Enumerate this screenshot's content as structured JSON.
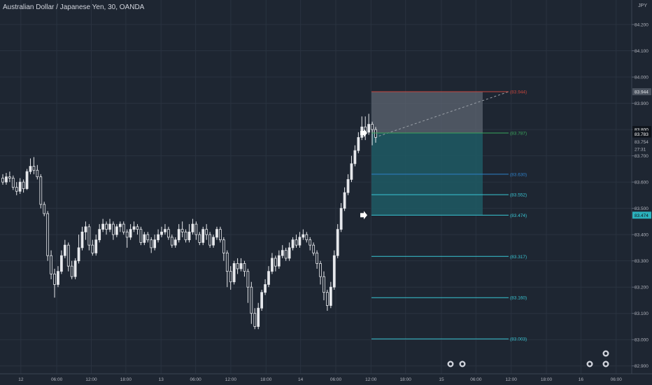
{
  "header": {
    "title": "Australian Dollar / Japanese Yen, 30, OANDA"
  },
  "colors": {
    "background": "#1e2632",
    "grid": "#2a3340",
    "text": "#b2b5be",
    "candle": "#e6e8ec",
    "stop_line": "#c8463d",
    "entry_line": "#3ba55c",
    "fib_line_blue": "#2e80c9",
    "fib_line_cyan": "#39c6d4",
    "current_price_bg": "#e6e8ec",
    "entry_price_bg": "#2bb2bd"
  },
  "chart_data": {
    "type": "candlestick",
    "y_axis_unit": "JPY",
    "ylim": [
      82.87,
      84.28
    ],
    "y_ticks": [
      82.9,
      83.0,
      83.1,
      83.2,
      83.3,
      83.4,
      83.5,
      83.6,
      83.7,
      83.8,
      83.9,
      84.0,
      84.1,
      84.2
    ],
    "y_tick_labels": [
      "82.900",
      "83.000",
      "83.100",
      "83.200",
      "83.300",
      "83.400",
      "83.500",
      "83.600",
      "83.700",
      "83.800",
      "83.900",
      "84.000",
      "84.100",
      "84.200"
    ],
    "x_tick_labels": [
      "12",
      "06:00",
      "12:00",
      "18:00",
      "13",
      "06:00",
      "12:00",
      "18:00",
      "14",
      "06:00",
      "12:00",
      "18:00",
      "15",
      "06:00",
      "12:00",
      "18:00",
      "16",
      "06:00"
    ],
    "x_tick_fractions": [
      0.032,
      0.087,
      0.14,
      0.193,
      0.247,
      0.3,
      0.354,
      0.408,
      0.461,
      0.515,
      0.569,
      0.622,
      0.677,
      0.73,
      0.784,
      0.838,
      0.891,
      0.945
    ],
    "price_levels": [
      {
        "price": 83.944,
        "label": "(83.944)",
        "role": "stop"
      },
      {
        "price": 83.787,
        "label": "(83.787)",
        "role": "entry"
      },
      {
        "price": 83.63,
        "label": "(83.630)",
        "role": "target"
      },
      {
        "price": 83.552,
        "label": "(83.552)",
        "role": "target"
      },
      {
        "price": 83.474,
        "label": "(83.474)",
        "role": "target"
      },
      {
        "price": 83.317,
        "label": "(83.317)",
        "role": "target"
      },
      {
        "price": 83.16,
        "label": "(83.160)",
        "role": "target"
      },
      {
        "price": 83.003,
        "label": "(83.003)",
        "role": "target"
      }
    ],
    "axis_badges": [
      {
        "label": "83.944",
        "price": 83.944,
        "style": "stop"
      },
      {
        "label": "83.800",
        "price": 83.8,
        "style": "current"
      },
      {
        "label": "83.783",
        "price": 83.783,
        "style": "current"
      },
      {
        "label": "83.754",
        "price": 83.754,
        "style": "plain"
      },
      {
        "label": "27:31",
        "price": 83.725,
        "style": "plain"
      },
      {
        "label": "83.474",
        "price": 83.474,
        "style": "entry"
      }
    ],
    "candles": [
      [
        83.615,
        83.6,
        83.63,
        83.59
      ],
      [
        83.6,
        83.62,
        83.635,
        83.59
      ],
      [
        83.62,
        83.615,
        83.64,
        83.6
      ],
      [
        83.615,
        83.58,
        83.625,
        83.57
      ],
      [
        83.58,
        83.565,
        83.6,
        83.55
      ],
      [
        83.565,
        83.6,
        83.615,
        83.555
      ],
      [
        83.6,
        83.575,
        83.61,
        83.56
      ],
      [
        83.575,
        83.64,
        83.65,
        83.57
      ],
      [
        83.64,
        83.66,
        83.69,
        83.63
      ],
      [
        83.66,
        83.645,
        83.695,
        83.63
      ],
      [
        83.645,
        83.62,
        83.665,
        83.61
      ],
      [
        83.62,
        83.515,
        83.63,
        83.5
      ],
      [
        83.515,
        83.48,
        83.525,
        83.47
      ],
      [
        83.48,
        83.32,
        83.49,
        83.3
      ],
      [
        83.32,
        83.25,
        83.34,
        83.23
      ],
      [
        83.25,
        83.21,
        83.27,
        83.16
      ],
      [
        83.21,
        83.26,
        83.28,
        83.2
      ],
      [
        83.26,
        83.32,
        83.34,
        83.25
      ],
      [
        83.32,
        83.36,
        83.38,
        83.31
      ],
      [
        83.36,
        83.28,
        83.37,
        83.26
      ],
      [
        83.28,
        83.24,
        83.3,
        83.23
      ],
      [
        83.24,
        83.3,
        83.31,
        83.23
      ],
      [
        83.3,
        83.35,
        83.4,
        83.29
      ],
      [
        83.35,
        83.41,
        83.43,
        83.34
      ],
      [
        83.41,
        83.43,
        83.45,
        83.38
      ],
      [
        83.43,
        83.36,
        83.44,
        83.34
      ],
      [
        83.36,
        83.33,
        83.38,
        83.32
      ],
      [
        83.33,
        83.38,
        83.4,
        83.32
      ],
      [
        83.38,
        83.42,
        83.44,
        83.37
      ],
      [
        83.42,
        83.44,
        83.46,
        83.41
      ],
      [
        83.44,
        83.42,
        83.45,
        83.4
      ],
      [
        83.42,
        83.44,
        83.46,
        83.41
      ],
      [
        83.44,
        83.4,
        83.45,
        83.38
      ],
      [
        83.4,
        83.43,
        83.44,
        83.39
      ],
      [
        83.43,
        83.44,
        83.45,
        83.41
      ],
      [
        83.44,
        83.41,
        83.45,
        83.4
      ],
      [
        83.41,
        83.39,
        83.42,
        83.35
      ],
      [
        83.39,
        83.42,
        83.44,
        83.38
      ],
      [
        83.42,
        83.43,
        83.45,
        83.41
      ],
      [
        83.43,
        83.42,
        83.44,
        83.4
      ],
      [
        83.42,
        83.37,
        83.43,
        83.36
      ],
      [
        83.37,
        83.4,
        83.41,
        83.36
      ],
      [
        83.4,
        83.38,
        83.41,
        83.37
      ],
      [
        83.38,
        83.35,
        83.39,
        83.33
      ],
      [
        83.35,
        83.38,
        83.4,
        83.34
      ],
      [
        83.38,
        83.4,
        83.42,
        83.37
      ],
      [
        83.4,
        83.41,
        83.43,
        83.39
      ],
      [
        83.41,
        83.42,
        83.44,
        83.4
      ],
      [
        83.42,
        83.39,
        83.43,
        83.38
      ],
      [
        83.39,
        83.36,
        83.4,
        83.35
      ],
      [
        83.36,
        83.38,
        83.39,
        83.35
      ],
      [
        83.38,
        83.42,
        83.44,
        83.37
      ],
      [
        83.42,
        83.41,
        83.45,
        83.39
      ],
      [
        83.41,
        83.38,
        83.42,
        83.37
      ],
      [
        83.38,
        83.41,
        83.44,
        83.37
      ],
      [
        83.41,
        83.44,
        83.46,
        83.4
      ],
      [
        83.44,
        83.4,
        83.45,
        83.38
      ],
      [
        83.4,
        83.37,
        83.41,
        83.36
      ],
      [
        83.37,
        83.42,
        83.43,
        83.36
      ],
      [
        83.42,
        83.4,
        83.44,
        83.38
      ],
      [
        83.4,
        83.36,
        83.41,
        83.35
      ],
      [
        83.36,
        83.39,
        83.4,
        83.35
      ],
      [
        83.39,
        83.42,
        83.43,
        83.38
      ],
      [
        83.42,
        83.38,
        83.43,
        83.37
      ],
      [
        83.38,
        83.33,
        83.39,
        83.3
      ],
      [
        83.33,
        83.26,
        83.34,
        83.2
      ],
      [
        83.26,
        83.22,
        83.28,
        83.19
      ],
      [
        83.22,
        83.29,
        83.3,
        83.21
      ],
      [
        83.29,
        83.27,
        83.31,
        83.25
      ],
      [
        83.27,
        83.29,
        83.31,
        83.26
      ],
      [
        83.29,
        83.26,
        83.3,
        83.24
      ],
      [
        83.26,
        83.2,
        83.27,
        83.14
      ],
      [
        83.2,
        83.1,
        83.22,
        83.06
      ],
      [
        83.1,
        83.05,
        83.12,
        83.04
      ],
      [
        83.05,
        83.12,
        83.14,
        83.04
      ],
      [
        83.12,
        83.18,
        83.19,
        83.11
      ],
      [
        83.18,
        83.21,
        83.23,
        83.17
      ],
      [
        83.21,
        83.26,
        83.28,
        83.2
      ],
      [
        83.26,
        83.31,
        83.33,
        83.25
      ],
      [
        83.31,
        83.28,
        83.32,
        83.26
      ],
      [
        83.28,
        83.32,
        83.34,
        83.27
      ],
      [
        83.32,
        83.34,
        83.36,
        83.31
      ],
      [
        83.34,
        83.31,
        83.35,
        83.3
      ],
      [
        83.31,
        83.35,
        83.37,
        83.3
      ],
      [
        83.35,
        83.38,
        83.39,
        83.34
      ],
      [
        83.38,
        83.36,
        83.4,
        83.35
      ],
      [
        83.36,
        83.39,
        83.41,
        83.35
      ],
      [
        83.39,
        83.4,
        83.42,
        83.38
      ],
      [
        83.4,
        83.38,
        83.41,
        83.37
      ],
      [
        83.38,
        83.36,
        83.39,
        83.34
      ],
      [
        83.36,
        83.33,
        83.37,
        83.32
      ],
      [
        83.33,
        83.29,
        83.34,
        83.27
      ],
      [
        83.29,
        83.24,
        83.3,
        83.21
      ],
      [
        83.24,
        83.18,
        83.26,
        83.15
      ],
      [
        83.18,
        83.13,
        83.19,
        83.11
      ],
      [
        83.13,
        83.2,
        83.22,
        83.12
      ],
      [
        83.2,
        83.32,
        83.34,
        83.19
      ],
      [
        83.32,
        83.42,
        83.44,
        83.31
      ],
      [
        83.42,
        83.5,
        83.52,
        83.41
      ],
      [
        83.5,
        83.56,
        83.58,
        83.49
      ],
      [
        83.56,
        83.61,
        83.63,
        83.55
      ],
      [
        83.61,
        83.67,
        83.7,
        83.6
      ],
      [
        83.67,
        83.72,
        83.74,
        83.66
      ],
      [
        83.72,
        83.77,
        83.79,
        83.71
      ],
      [
        83.77,
        83.81,
        83.85,
        83.76
      ],
      [
        83.81,
        83.79,
        83.85,
        83.76
      ],
      [
        83.79,
        83.82,
        83.86,
        83.78
      ],
      [
        83.82,
        83.8,
        83.83,
        83.74
      ],
      [
        83.8,
        83.77,
        83.81,
        83.75
      ]
    ]
  }
}
